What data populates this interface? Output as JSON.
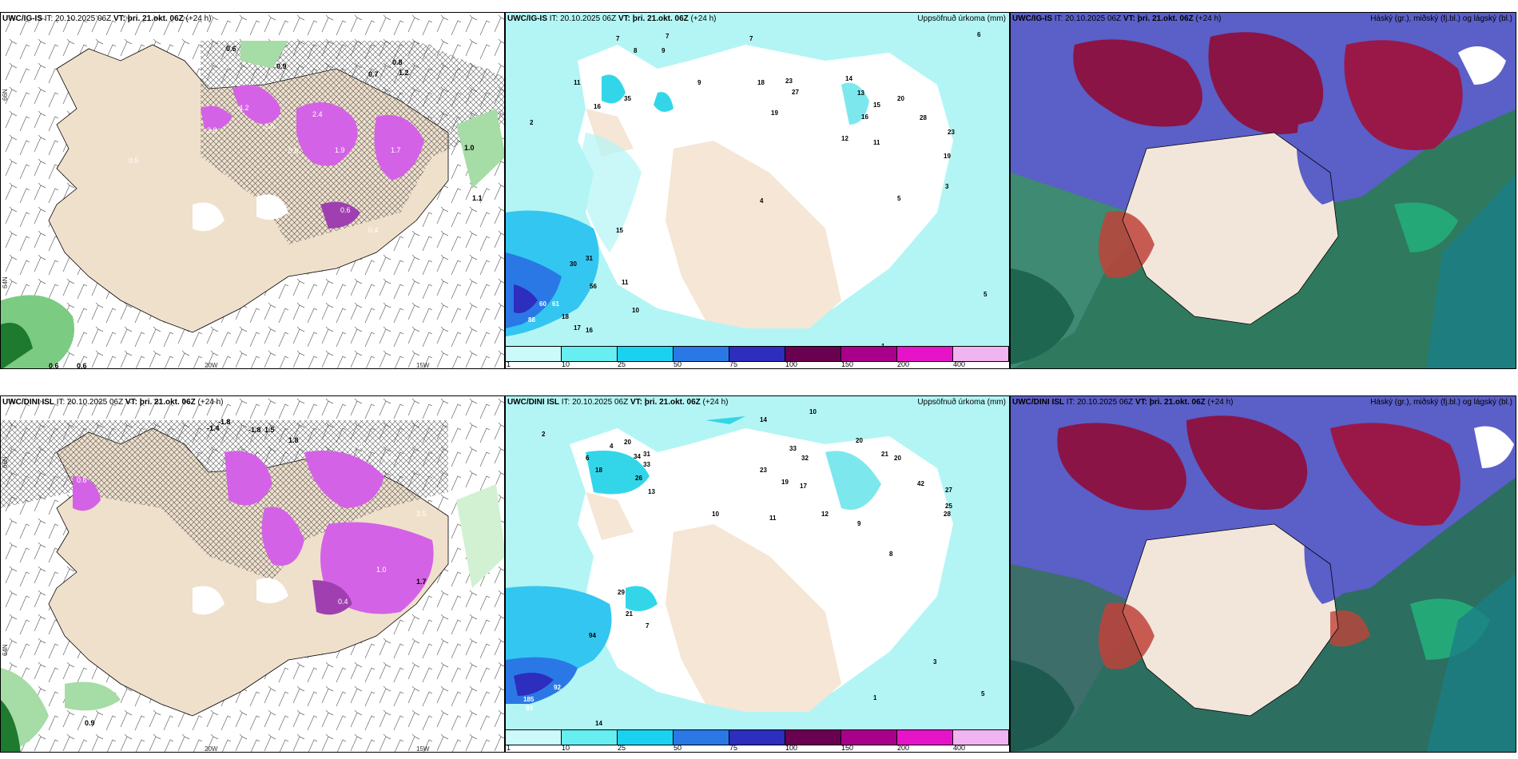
{
  "panels": {
    "ig_wind": {
      "model": "UWC/IG-IS",
      "rest": " IT: 20.10.2025 06Z ",
      "vt_label": "VT:",
      "vt": " þri. 21.okt. 06Z",
      "lead": " (+24 h)"
    },
    "ig_precip": {
      "model": "UWC/IG-IS",
      "rest": " IT: 20.10.2025 06Z ",
      "vt_label": "VT:",
      "vt": " þri. 21.okt. 06Z",
      "lead": " (+24 h)",
      "right": "Uppsöfnuð úrkoma (mm)"
    },
    "ig_cloud": {
      "model": "UWC/IG-IS",
      "rest": " IT: 20.10.2025 06Z ",
      "vt_label": "VT:",
      "vt": " þri. 21.okt. 06Z",
      "lead": " (+24 h)",
      "right": "Háský (gr.), miðský (fj.bl.) og lágský (bl.)"
    },
    "dini_wind": {
      "model": "UWC/DINI ISL",
      "rest": " IT: 20.10.2025 06Z ",
      "vt_label": "VT:",
      "vt": " þri. 21.okt. 06Z",
      "lead": " (+24 h)"
    },
    "dini_precip": {
      "model": "UWC/DINI ISL",
      "rest": " IT: 20.10.2025 06Z ",
      "vt_label": "VT:",
      "vt": " þri. 21.okt. 06Z",
      "lead": " (+24 h)",
      "right": "Uppsöfnuð úrkoma (mm)"
    },
    "dini_cloud": {
      "model": "UWC/DINI ISL",
      "rest": " IT: 20.10.2025 06Z ",
      "vt_label": "VT:",
      "vt": " þri. 21.okt. 06Z",
      "lead": " (+24 h)",
      "right": "Háský (gr.), miðský (fj.bl.) og lágský (bl.)"
    }
  },
  "axes": {
    "lon1": "20W",
    "lon2": "15W",
    "lat1": "66N",
    "lat2": "64N",
    "lat3": "63N"
  },
  "legend": {
    "ticks": [
      "1",
      "10",
      "25",
      "50",
      "75",
      "100",
      "150",
      "200",
      "400"
    ],
    "colors": [
      "#ccfafa",
      "#66eef0",
      "#1ad2f0",
      "#2a78e6",
      "#2d2dbe",
      "#6a0050",
      "#a8008a",
      "#e614c8",
      "#f0b4f0"
    ]
  },
  "ig_wind_values": [
    "0.6",
    "0.9",
    "0.6",
    "0.7",
    "0.8",
    "1.2",
    "2.0",
    "4.2",
    "2.6",
    "2.4",
    "1.9",
    "0.9",
    "1.7",
    "0.4",
    "0.6",
    "1.0",
    "1.1",
    "0.5",
    "0.6"
  ],
  "dini_wind_values": [
    "-1.4",
    "-1.8",
    "-1.8",
    "1.5",
    "1.8",
    "3.0",
    "2.5",
    "1.7",
    "0.4",
    "0.9",
    "0.6",
    "3.5",
    "1.0"
  ],
  "ig_precip_values": [
    "7",
    "7",
    "7",
    "6",
    "8",
    "9",
    "11",
    "35",
    "18",
    "23",
    "27",
    "16",
    "19",
    "14",
    "15",
    "13",
    "20",
    "16",
    "28",
    "23",
    "19",
    "12",
    "11",
    "15",
    "30",
    "31",
    "56",
    "60",
    "61",
    "88",
    "18",
    "17",
    "16",
    "10",
    "11",
    "9",
    "5",
    "3",
    "4",
    "5",
    "1",
    "2"
  ],
  "dini_precip_values": [
    "2",
    "14",
    "10",
    "6",
    "4",
    "20",
    "34",
    "31",
    "33",
    "26",
    "13",
    "18",
    "33",
    "32",
    "23",
    "19",
    "17",
    "20",
    "21",
    "20",
    "42",
    "27",
    "28",
    "25",
    "94",
    "92",
    "185",
    "93",
    "14",
    "29",
    "21",
    "11",
    "12",
    "10",
    "9",
    "8",
    "7",
    "3",
    "1",
    "5"
  ]
}
